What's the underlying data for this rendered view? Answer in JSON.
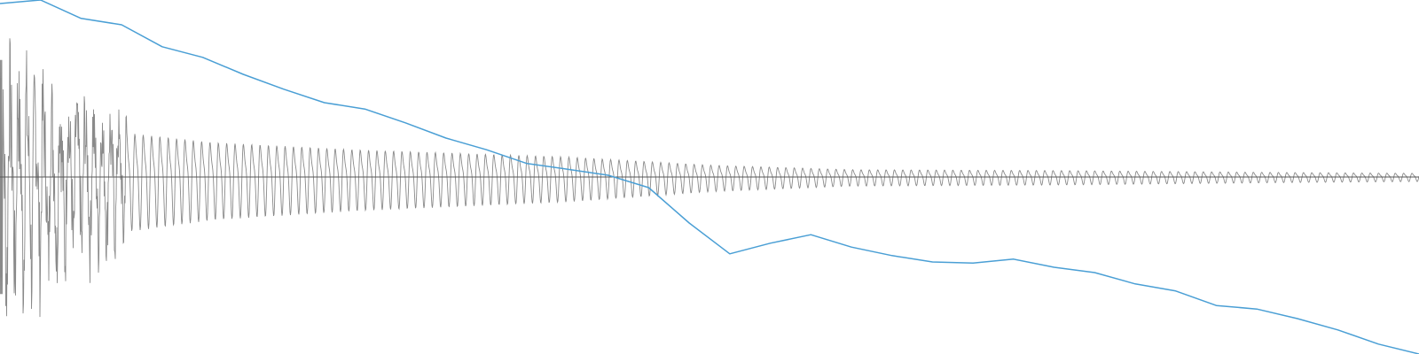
{
  "chart_data": [
    {
      "type": "line",
      "title": "",
      "xlabel": "",
      "ylabel": "",
      "grid": false,
      "legend": "none",
      "xlim": [
        0,
        35
      ],
      "ylim": [
        0,
        1
      ],
      "series": [
        {
          "color": "#4a9fd5",
          "x": [
            0,
            1,
            2,
            3,
            4,
            5,
            6,
            7,
            8,
            9,
            10,
            11,
            12,
            13,
            14,
            15,
            16,
            17,
            18,
            19,
            20,
            21,
            22,
            23,
            24,
            25,
            26,
            27,
            28,
            29,
            30,
            31,
            32,
            33,
            34,
            35
          ],
          "values": [
            0.99,
            1.0,
            0.948,
            0.93,
            0.868,
            0.838,
            0.79,
            0.748,
            0.71,
            0.692,
            0.653,
            0.61,
            0.577,
            0.538,
            0.522,
            0.505,
            0.47,
            0.37,
            0.283,
            0.313,
            0.337,
            0.302,
            0.278,
            0.26,
            0.257,
            0.268,
            0.245,
            0.23,
            0.198,
            0.178,
            0.137,
            0.127,
            0.1,
            0.068,
            0.028,
            0.0
          ]
        }
      ]
    },
    {
      "type": "waveform",
      "title": "",
      "xlabel": "",
      "ylabel": "",
      "grid": false,
      "legend": "none",
      "color": "#8a8a8a",
      "baseline_color": "#555555",
      "xlim": [
        0,
        1
      ],
      "ylim": [
        -1,
        1
      ],
      "duration": 1.0,
      "frequency_hz": 170,
      "decay": 2.2,
      "amplitude_envelope": {
        "t": [
          0.0,
          0.03,
          0.08,
          0.15,
          0.25,
          0.4,
          0.5,
          0.6,
          0.75,
          0.9,
          1.0
        ],
        "amp": [
          0.95,
          0.75,
          0.5,
          0.38,
          0.3,
          0.22,
          0.13,
          0.08,
          0.07,
          0.05,
          0.04
        ]
      }
    }
  ]
}
